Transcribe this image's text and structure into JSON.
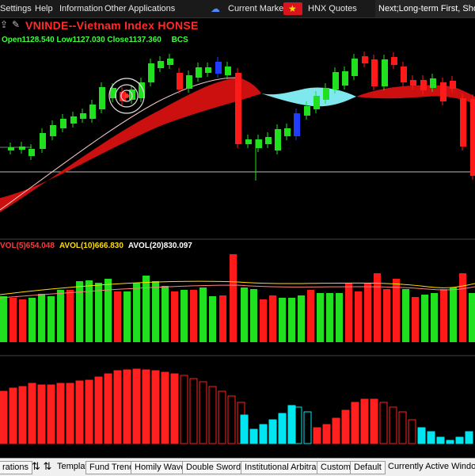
{
  "menu": {
    "items": [
      "Settings",
      "Help",
      "Information",
      "Other Applications"
    ],
    "current_market_label": "Current Market:",
    "market_name": "HNX Quotes",
    "marquee": "Next;Long-term First, Short"
  },
  "chart": {
    "title": "VNINDE--Vietnam Index  HONSE",
    "ohlc": "Open1128.540 Low1127.030 Close1137.360",
    "indicator": "BCS",
    "vol_legend": [
      {
        "text": "VOL(5)654.048",
        "color": "#ff3a3a"
      },
      {
        "text": "AVOL(10)666.830",
        "color": "#ffde00"
      },
      {
        "text": "AVOL(20)830.097",
        "color": "#ffffff"
      }
    ]
  },
  "bottom": {
    "left_tab": "rations",
    "template_label": "Templat",
    "buttons": [
      "Fund Trend",
      "Homily Wave",
      "Double Swords",
      "Institutional Arbitrage",
      "Custom",
      "Default"
    ],
    "active_window_label": "Currently Active Window:"
  },
  "colors": {
    "up": "#20e020",
    "down": "#ff1a1a",
    "blue_candle": "#1f3cff",
    "band_red": "#cc1010",
    "band_cyan": "#7fe8ef",
    "histogram_red": "#ff2020",
    "histogram_cyan": "#00e5f0"
  },
  "icons": [
    "export-icon",
    "draw-icon",
    "cloud-icon",
    "flag-icon",
    "updown-arrow-icon",
    "target-icon"
  ]
}
